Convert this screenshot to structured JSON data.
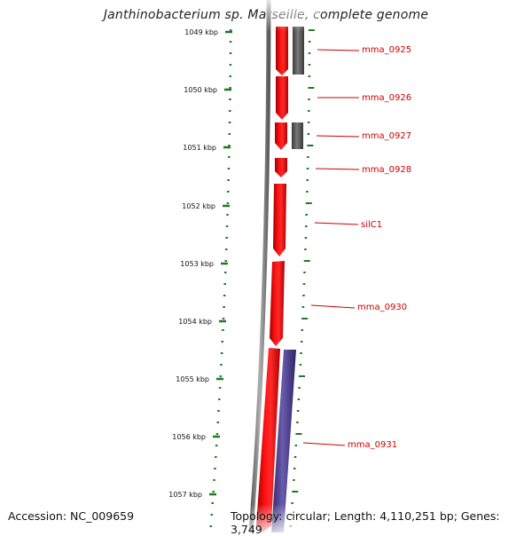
{
  "title": "Janthinobacterium sp. Marseille, complete genome",
  "accession": "Accession: NC_009659",
  "topology": "Topology: circular; Length: 4,110,251 bp; Genes: 3,749",
  "kbp_labels": [
    "1049 kbp",
    "1050 kbp",
    "1051 kbp",
    "1052 kbp",
    "1053 kbp",
    "1054 kbp",
    "1055 kbp",
    "1056 kbp",
    "1057 kbp"
  ],
  "genes": [
    {
      "label": "mma_0925"
    },
    {
      "label": "mma_0926"
    },
    {
      "label": "mma_0927"
    },
    {
      "label": "mma_0928"
    },
    {
      "label": "silC1"
    },
    {
      "label": "mma_0930"
    },
    {
      "label": "mma_0931"
    }
  ],
  "colors": {
    "forward_gene": "#ee0000",
    "reverse_gene_dark": "#555555",
    "reverse_gene_blue": "#4a3d8c",
    "tick": "#1f7a1f",
    "label": "#cc0000",
    "backbone": "#888888"
  }
}
